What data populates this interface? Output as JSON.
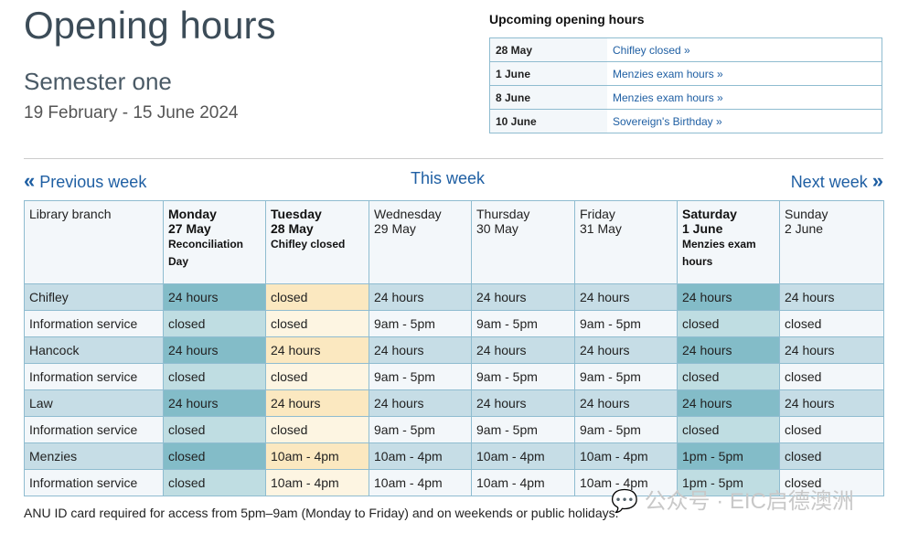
{
  "title": "Opening hours",
  "semester": "Semester one",
  "date_range": "19 February - 15 June 2024",
  "upcoming": {
    "title": "Upcoming opening hours",
    "items": [
      {
        "date": "28 May",
        "label": "Chifley closed »"
      },
      {
        "date": "1 June",
        "label": "Menzies exam hours »"
      },
      {
        "date": "8 June",
        "label": "Menzies exam hours »"
      },
      {
        "date": "10 June",
        "label": "Sovereign's Birthday »"
      }
    ]
  },
  "nav": {
    "prev": "Previous week",
    "this": "This week",
    "next": "Next week",
    "prev_icon": "«",
    "next_icon": "»"
  },
  "table": {
    "branch_header": "Library branch",
    "days": [
      {
        "day": "Monday",
        "date": "27 May",
        "note": "Reconciliation Day",
        "highlight": true
      },
      {
        "day": "Tuesday",
        "date": "28 May",
        "note": "Chifley closed",
        "highlight": true
      },
      {
        "day": "Wednesday",
        "date": "29 May",
        "note": ""
      },
      {
        "day": "Thursday",
        "date": "30 May",
        "note": ""
      },
      {
        "day": "Friday",
        "date": "31 May",
        "note": ""
      },
      {
        "day": "Saturday",
        "date": "1 June",
        "note": "Menzies exam hours",
        "highlight": true
      },
      {
        "day": "Sunday",
        "date": "2 June",
        "note": ""
      }
    ],
    "rows": [
      {
        "name": "Chifley",
        "type": "lib",
        "hours": [
          "24 hours",
          "closed",
          "24 hours",
          "24 hours",
          "24 hours",
          "24 hours",
          "24 hours"
        ]
      },
      {
        "name": "Information service",
        "type": "info",
        "hours": [
          "closed",
          "closed",
          "9am - 5pm",
          "9am - 5pm",
          "9am - 5pm",
          "closed",
          "closed"
        ]
      },
      {
        "name": "Hancock",
        "type": "lib",
        "hours": [
          "24 hours",
          "24 hours",
          "24 hours",
          "24 hours",
          "24 hours",
          "24 hours",
          "24 hours"
        ]
      },
      {
        "name": "Information service",
        "type": "info",
        "hours": [
          "closed",
          "closed",
          "9am - 5pm",
          "9am - 5pm",
          "9am - 5pm",
          "closed",
          "closed"
        ]
      },
      {
        "name": "Law",
        "type": "lib",
        "hours": [
          "24 hours",
          "24 hours",
          "24 hours",
          "24 hours",
          "24 hours",
          "24 hours",
          "24 hours"
        ]
      },
      {
        "name": "Information service",
        "type": "info",
        "hours": [
          "closed",
          "closed",
          "9am - 5pm",
          "9am - 5pm",
          "9am - 5pm",
          "closed",
          "closed"
        ]
      },
      {
        "name": "Menzies",
        "type": "lib",
        "hours": [
          "closed",
          "10am - 4pm",
          "10am - 4pm",
          "10am - 4pm",
          "10am - 4pm",
          "1pm - 5pm",
          "closed"
        ]
      },
      {
        "name": "Information service",
        "type": "info",
        "hours": [
          "closed",
          "10am - 4pm",
          "10am - 4pm",
          "10am - 4pm",
          "10am - 4pm",
          "1pm - 5pm",
          "closed"
        ]
      }
    ]
  },
  "footnote": "ANU ID card required for access from 5pm–9am (Monday to Friday) and on weekends or public holidays.",
  "watermark": "公众号 · EIC启德澳洲",
  "colors": {
    "link": "#1f5fa3",
    "border": "#8fbcd0",
    "highlight_dark": "#83bcc8",
    "highlight_light": "#bfdde2",
    "tuesday_dark": "#fbe8c0",
    "tuesday_light": "#fdf5e2"
  }
}
